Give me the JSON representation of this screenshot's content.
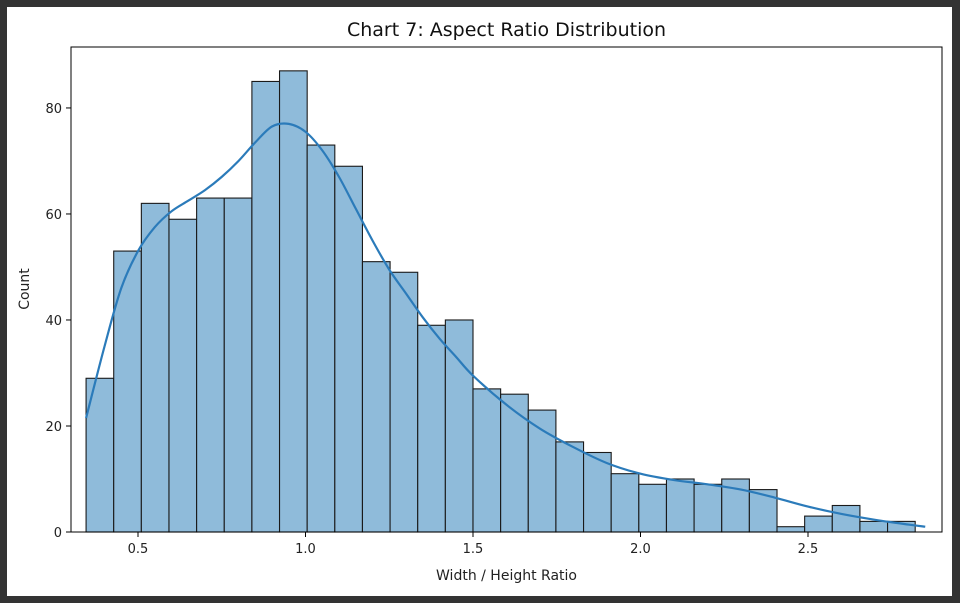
{
  "chart_data": {
    "type": "histogram",
    "title": "Chart 7: Aspect Ratio Distribution",
    "xlabel": "Width / Height Ratio",
    "ylabel": "Count",
    "xlim": [
      0.3,
      2.9
    ],
    "ylim": [
      0,
      91.5
    ],
    "xticks": [
      0.5,
      1.0,
      1.5,
      2.0,
      2.5
    ],
    "xtick_labels": [
      "0.5",
      "1.0",
      "1.5",
      "2.0",
      "2.5"
    ],
    "yticks": [
      0,
      20,
      40,
      60,
      80
    ],
    "ytick_labels": [
      "0",
      "20",
      "40",
      "60",
      "80"
    ],
    "grid": false,
    "bin_start": 0.345,
    "bin_width": 0.0825,
    "counts": [
      29,
      53,
      62,
      59,
      63,
      63,
      85,
      87,
      73,
      69,
      51,
      49,
      39,
      40,
      27,
      26,
      23,
      17,
      15,
      11,
      9,
      10,
      9,
      10,
      8,
      1,
      3,
      5,
      2,
      2
    ],
    "kde": {
      "x": [
        0.345,
        0.4,
        0.45,
        0.5,
        0.55,
        0.6,
        0.65,
        0.7,
        0.75,
        0.8,
        0.85,
        0.9,
        0.95,
        1.0,
        1.05,
        1.1,
        1.15,
        1.2,
        1.25,
        1.3,
        1.35,
        1.4,
        1.45,
        1.5,
        1.6,
        1.7,
        1.8,
        1.9,
        2.0,
        2.1,
        2.2,
        2.3,
        2.4,
        2.5,
        2.6,
        2.7,
        2.8,
        2.85
      ],
      "y": [
        21.5,
        35,
        46,
        53,
        57.5,
        60.5,
        62.5,
        64.5,
        67,
        70,
        73.5,
        76.5,
        77,
        75.5,
        72,
        67,
        61,
        55,
        49.5,
        45,
        40.5,
        36.5,
        33,
        29.5,
        24,
        19.5,
        16,
        13,
        11,
        9.8,
        9.0,
        8.0,
        6.5,
        4.8,
        3.4,
        2.3,
        1.4,
        1.0
      ]
    },
    "bar_color": "#8fbbda",
    "bar_edge_color": "#1a1a1a",
    "line_color": "#2b7bba"
  }
}
